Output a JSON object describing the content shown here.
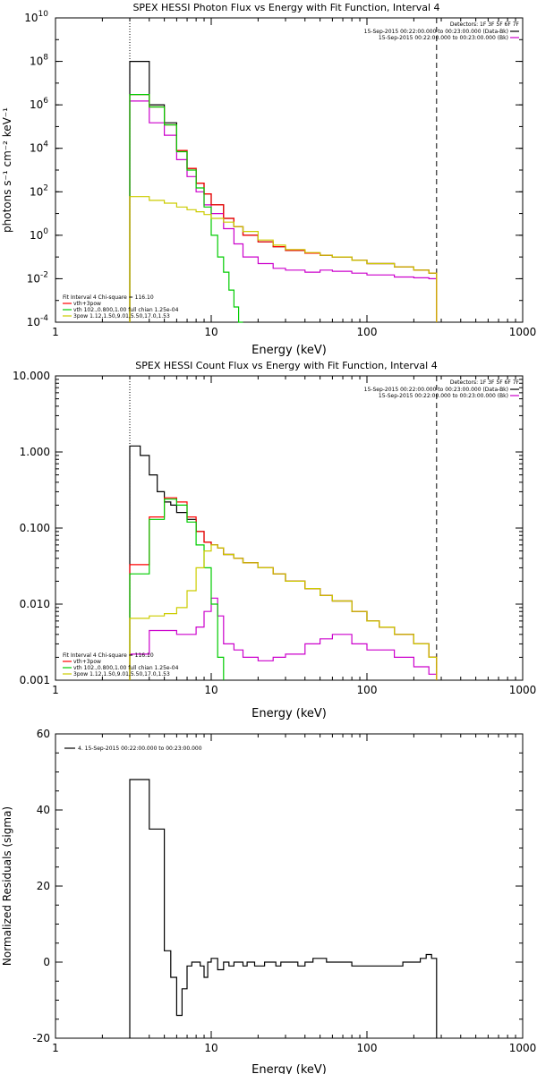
{
  "chart_data": [
    {
      "type": "line",
      "title": "SPEX HESSI Photon Flux vs Energy with Fit Function, Interval 4",
      "xlabel": "Energy (keV)",
      "ylabel": "photons s⁻¹ cm⁻² keV⁻¹",
      "xscale": "log",
      "yscale": "log",
      "xlim": [
        1,
        1000
      ],
      "ylim": [
        0.0001,
        10000000000
      ],
      "xticks": [
        1,
        10,
        100,
        1000
      ],
      "xtick_labels": [
        "1",
        "10",
        "100",
        "1000"
      ],
      "yticks": [
        0.0001,
        0.01,
        1,
        100,
        10000,
        1000000,
        100000000,
        10000000000
      ],
      "ytick_labels": [
        [
          "10",
          "-4"
        ],
        [
          "10",
          "-2"
        ],
        [
          "10",
          "0"
        ],
        [
          "10",
          "2"
        ],
        [
          "10",
          "4"
        ],
        [
          "10",
          "6"
        ],
        [
          "10",
          "8"
        ],
        [
          "10",
          "10"
        ]
      ],
      "vlines": [
        {
          "x": 3,
          "style": "dotted"
        },
        {
          "x": 280,
          "style": "dashed"
        }
      ],
      "legend_topright": {
        "header": "Detectors: 1F 3F 5F 6F 7F",
        "entries": [
          {
            "text": "15-Sep-2015 00:22:00.000 to 00:23:00.000 (Data-Bk)",
            "color": "#000000"
          },
          {
            "text": "15-Sep-2015 00:22:00.000 to 00:23:00.000 (Bk)",
            "color": "#cc00cc"
          }
        ]
      },
      "legend_bottomleft": {
        "header": "Fit Interval  4    Chi-square = 116.10",
        "entries": [
          {
            "text": "vth+3pow",
            "color": "#ff0000"
          },
          {
            "text": "vth 102.,0.800,1.00  full chian 1.25e-04",
            "color": "#00cc00"
          },
          {
            "text": "3pow 1.12,1.50,9.01,5.50,17.0,1.53",
            "color": "#cccc00"
          }
        ]
      },
      "series": [
        {
          "color": "#000000",
          "step": true,
          "x": [
            3,
            4,
            5,
            6,
            7,
            8,
            9,
            10,
            12,
            14,
            16,
            20,
            25,
            30,
            40,
            50,
            60,
            80,
            100,
            150,
            200,
            250,
            280
          ],
          "y": [
            100000000,
            1000000,
            150000,
            8000,
            1200,
            250,
            80,
            25,
            6,
            2.5,
            1,
            0.5,
            0.3,
            0.2,
            0.15,
            0.12,
            0.1,
            0.07,
            0.05,
            0.035,
            0.025,
            0.018,
            0.012
          ]
        },
        {
          "color": "#cc00cc",
          "step": true,
          "x": [
            3,
            4,
            5,
            6,
            7,
            8,
            9,
            10,
            12,
            14,
            16,
            20,
            25,
            30,
            40,
            50,
            60,
            80,
            100,
            150,
            200,
            250,
            280
          ],
          "y": [
            1500000,
            150000,
            40000,
            3000,
            500,
            100,
            25,
            10,
            2,
            0.4,
            0.1,
            0.05,
            0.03,
            0.025,
            0.02,
            0.025,
            0.022,
            0.018,
            0.015,
            0.012,
            0.011,
            0.01,
            0.008
          ]
        },
        {
          "color": "#ff0000",
          "step": true,
          "x": [
            3,
            4,
            5,
            6,
            7,
            8,
            9,
            10,
            12,
            14,
            16,
            20,
            25,
            30,
            40,
            50,
            60,
            80,
            100,
            150,
            200,
            250,
            280
          ],
          "y": [
            3000000,
            800000,
            120000,
            8000,
            1200,
            250,
            80,
            25,
            6,
            2.5,
            1,
            0.5,
            0.3,
            0.2,
            0.15,
            0.12,
            0.1,
            0.07,
            0.05,
            0.035,
            0.025,
            0.018,
            0.012
          ]
        },
        {
          "color": "#00cc00",
          "step": true,
          "x": [
            3,
            4,
            5,
            6,
            7,
            8,
            9,
            10,
            11,
            12,
            13,
            14,
            15,
            16
          ],
          "y": [
            3000000,
            800000,
            120000,
            7000,
            1000,
            150,
            20,
            1,
            0.1,
            0.02,
            0.003,
            0.0005,
            0.0001,
            5e-05
          ]
        },
        {
          "color": "#cccc00",
          "step": true,
          "x": [
            3,
            4,
            5,
            6,
            7,
            8,
            9,
            10,
            12,
            14,
            16,
            20,
            25,
            30,
            40,
            50,
            60,
            80,
            100,
            150,
            200,
            250,
            280
          ],
          "y": [
            60,
            40,
            30,
            20,
            15,
            12,
            9,
            6,
            4,
            2.5,
            1.5,
            0.6,
            0.35,
            0.22,
            0.16,
            0.12,
            0.1,
            0.07,
            0.05,
            0.035,
            0.025,
            0.018,
            0.012
          ]
        }
      ]
    },
    {
      "type": "line",
      "title": "SPEX HESSI Count Flux vs Energy with Fit Function, Interval 4",
      "xlabel": "Energy (keV)",
      "ylabel": "",
      "xscale": "log",
      "yscale": "log",
      "xlim": [
        1,
        1000
      ],
      "ylim": [
        0.001,
        10
      ],
      "xticks": [
        1,
        10,
        100,
        1000
      ],
      "xtick_labels": [
        "1",
        "10",
        "100",
        "1000"
      ],
      "yticks": [
        0.001,
        0.01,
        0.1,
        1,
        10
      ],
      "ytick_labels": [
        [
          "0.001",
          ""
        ],
        [
          "0.010",
          ""
        ],
        [
          "0.100",
          ""
        ],
        [
          "1.000",
          ""
        ],
        [
          "10.000",
          ""
        ]
      ],
      "vlines": [
        {
          "x": 3,
          "style": "dotted"
        },
        {
          "x": 280,
          "style": "dashed"
        }
      ],
      "legend_topright": {
        "header": "Detectors: 1F 3F 5F 6F 7F",
        "entries": [
          {
            "text": "15-Sep-2015 00:22:00.000 to 00:23:00.000 (Data-Bk)",
            "color": "#000000"
          },
          {
            "text": "15-Sep-2015 00:22:00.000 to 00:23:00.000 (Bk)",
            "color": "#cc00cc"
          }
        ]
      },
      "legend_bottomleft": {
        "header": "Fit Interval  4    Chi-square = 116.10",
        "entries": [
          {
            "text": "vth+3pow",
            "color": "#ff0000"
          },
          {
            "text": "vth 102.,0.800,1.00  full chian 1.25e-04",
            "color": "#00cc00"
          },
          {
            "text": "3pow 1.12,1.50,9.01,5.50,17.0,1.53",
            "color": "#cccc00"
          }
        ]
      },
      "series": [
        {
          "color": "#000000",
          "step": true,
          "x": [
            3,
            3.5,
            4,
            4.5,
            5,
            5.5,
            6,
            7,
            8,
            9,
            10,
            11,
            12,
            14,
            16,
            20,
            25,
            30,
            40,
            50,
            60,
            80,
            100,
            120,
            150,
            200,
            250,
            280
          ],
          "y": [
            1.2,
            0.9,
            0.5,
            0.3,
            0.22,
            0.2,
            0.16,
            0.13,
            0.09,
            0.065,
            0.06,
            0.055,
            0.045,
            0.04,
            0.035,
            0.03,
            0.025,
            0.02,
            0.016,
            0.013,
            0.011,
            0.008,
            0.006,
            0.005,
            0.004,
            0.003,
            0.002,
            0.0012
          ]
        },
        {
          "color": "#cc00cc",
          "step": true,
          "x": [
            3,
            4,
            5,
            6,
            7,
            8,
            9,
            10,
            11,
            12,
            14,
            16,
            20,
            25,
            30,
            40,
            50,
            60,
            80,
            100,
            150,
            200,
            250,
            280
          ],
          "y": [
            0.0022,
            0.0045,
            0.0045,
            0.004,
            0.004,
            0.005,
            0.008,
            0.012,
            0.007,
            0.003,
            0.0025,
            0.002,
            0.0018,
            0.002,
            0.0022,
            0.003,
            0.0035,
            0.004,
            0.003,
            0.0025,
            0.002,
            0.0015,
            0.0012,
            0.001
          ]
        },
        {
          "color": "#ff0000",
          "step": true,
          "x": [
            3,
            4,
            5,
            6,
            7,
            8,
            9,
            10,
            11,
            12,
            14,
            16,
            20,
            25,
            30,
            40,
            50,
            60,
            80,
            100,
            120,
            150,
            200,
            250,
            280
          ],
          "y": [
            0.033,
            0.14,
            0.25,
            0.22,
            0.14,
            0.09,
            0.065,
            0.06,
            0.055,
            0.045,
            0.04,
            0.035,
            0.03,
            0.025,
            0.02,
            0.016,
            0.013,
            0.011,
            0.008,
            0.006,
            0.005,
            0.004,
            0.003,
            0.002,
            0.0012
          ]
        },
        {
          "color": "#00cc00",
          "step": true,
          "x": [
            3,
            4,
            5,
            6,
            7,
            8,
            9,
            10,
            11,
            12
          ],
          "y": [
            0.025,
            0.13,
            0.24,
            0.2,
            0.12,
            0.06,
            0.03,
            0.01,
            0.002,
            0.0008
          ]
        },
        {
          "color": "#cccc00",
          "step": true,
          "x": [
            3,
            4,
            5,
            6,
            7,
            8,
            9,
            10,
            11,
            12,
            14,
            16,
            20,
            25,
            30,
            40,
            50,
            60,
            80,
            100,
            120,
            150,
            200,
            250,
            280
          ],
          "y": [
            0.0065,
            0.007,
            0.0075,
            0.009,
            0.015,
            0.03,
            0.05,
            0.06,
            0.055,
            0.045,
            0.04,
            0.035,
            0.03,
            0.025,
            0.02,
            0.016,
            0.013,
            0.011,
            0.008,
            0.006,
            0.005,
            0.004,
            0.003,
            0.002,
            0.0012
          ]
        }
      ]
    },
    {
      "type": "line",
      "title": "",
      "xlabel": "Energy (keV)",
      "ylabel": "Normalized Residuals (sigma)",
      "xscale": "log",
      "yscale": "linear",
      "xlim": [
        1,
        1000
      ],
      "ylim": [
        -20,
        60
      ],
      "xticks": [
        1,
        10,
        100,
        1000
      ],
      "xtick_labels": [
        "1",
        "10",
        "100",
        "1000"
      ],
      "yticks": [
        -20,
        0,
        20,
        40,
        60
      ],
      "ytick_labels": [
        [
          "-20",
          ""
        ],
        [
          "0",
          ""
        ],
        [
          "20",
          ""
        ],
        [
          "40",
          ""
        ],
        [
          "60",
          ""
        ]
      ],
      "vlines": [],
      "legend_topleft": {
        "entries": [
          {
            "text": "4. 15-Sep-2015 00:22:00.000 to 00:23:00.000",
            "color": "#000000"
          }
        ]
      },
      "series": [
        {
          "color": "#000000",
          "step": true,
          "drop_to": -20,
          "x": [
            3,
            4,
            5,
            5.5,
            6,
            6.5,
            7,
            7.5,
            8,
            8.5,
            9,
            9.5,
            10,
            11,
            12,
            13,
            14,
            15,
            16,
            17,
            18,
            19,
            20,
            22,
            24,
            26,
            28,
            30,
            33,
            36,
            40,
            45,
            50,
            55,
            60,
            70,
            80,
            90,
            100,
            110,
            120,
            130,
            140,
            150,
            160,
            170,
            180,
            190,
            200,
            220,
            240,
            260,
            280
          ],
          "y": [
            48,
            35,
            3,
            -4,
            -14,
            -7,
            -1,
            0,
            0,
            -1,
            -4,
            0,
            1,
            -2,
            0,
            -1,
            0,
            0,
            -1,
            0,
            0,
            -1,
            -1,
            0,
            0,
            -1,
            0,
            0,
            0,
            -1,
            0,
            1,
            1,
            0,
            0,
            0,
            -1,
            -1,
            -1,
            -1,
            -1,
            -1,
            -1,
            -1,
            -1,
            0,
            0,
            0,
            0,
            1,
            2,
            1,
            0
          ]
        }
      ]
    }
  ]
}
